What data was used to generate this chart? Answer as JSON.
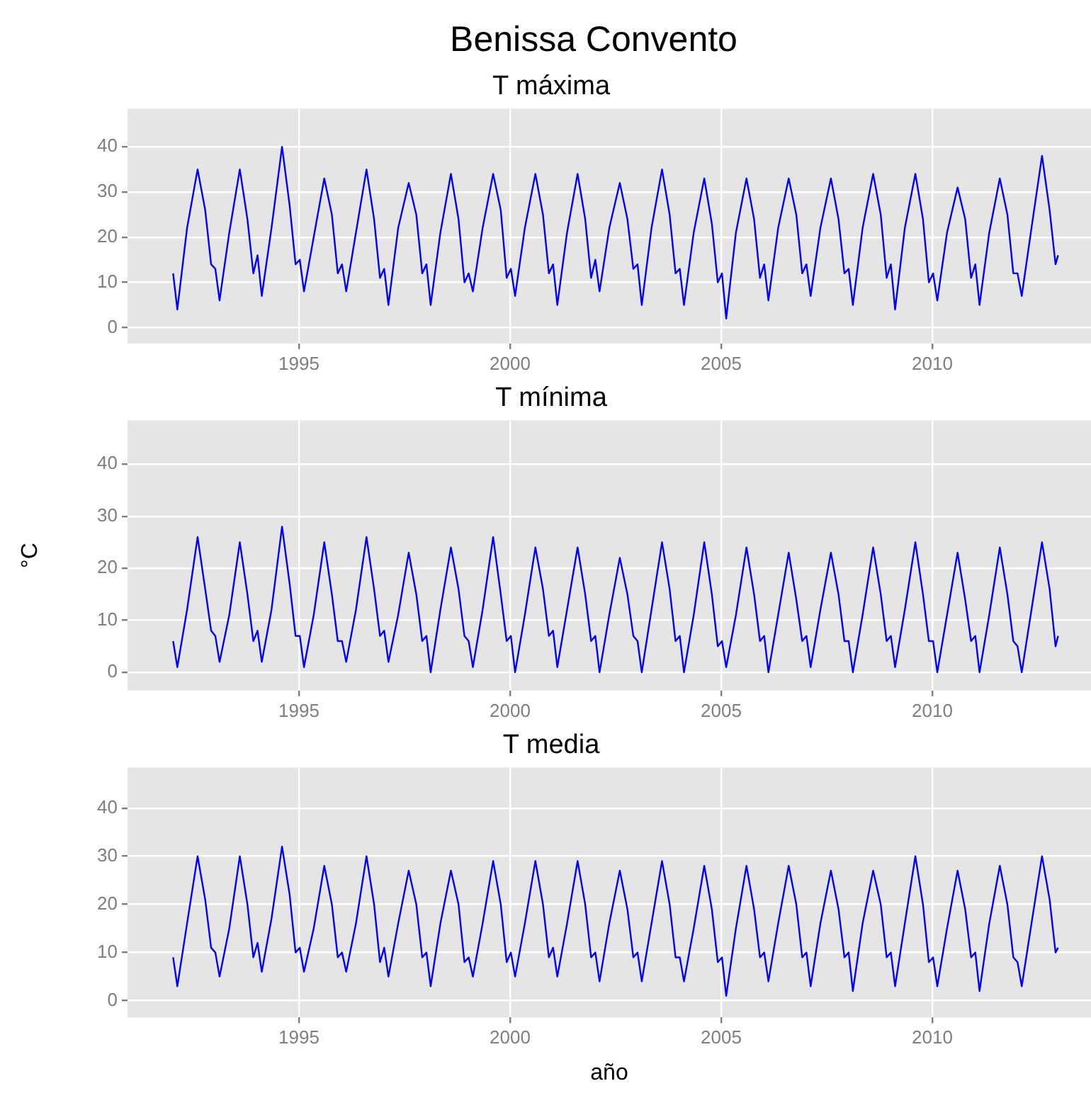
{
  "chart_data": [
    {
      "type": "line",
      "title": "Benissa Convento",
      "subtitle": "T máxima",
      "xlim": [
        1990.94,
        2013.76
      ],
      "ylim": [
        -3.5,
        48.4
      ],
      "xticks": [
        1995,
        2000,
        2005,
        2010
      ],
      "yticks": [
        0,
        10,
        20,
        30,
        40
      ],
      "grid": true,
      "legend": false,
      "marker": "none",
      "x": [
        1992.02,
        1992.12,
        1992.35,
        1992.6,
        1992.78,
        1992.92,
        1993.02,
        1993.12,
        1993.35,
        1993.6,
        1993.78,
        1993.92,
        1994.02,
        1994.12,
        1994.35,
        1994.6,
        1994.78,
        1994.92,
        1995.02,
        1995.12,
        1995.35,
        1995.6,
        1995.78,
        1995.92,
        1996.02,
        1996.12,
        1996.35,
        1996.6,
        1996.78,
        1996.92,
        1997.02,
        1997.12,
        1997.35,
        1997.6,
        1997.78,
        1997.92,
        1998.02,
        1998.12,
        1998.35,
        1998.6,
        1998.78,
        1998.92,
        1999.02,
        1999.12,
        1999.35,
        1999.6,
        1999.78,
        1999.92,
        2000.02,
        2000.12,
        2000.35,
        2000.6,
        2000.78,
        2000.92,
        2001.02,
        2001.12,
        2001.35,
        2001.6,
        2001.78,
        2001.92,
        2002.02,
        2002.12,
        2002.35,
        2002.6,
        2002.78,
        2002.92,
        2003.02,
        2003.12,
        2003.35,
        2003.6,
        2003.78,
        2003.92,
        2004.02,
        2004.12,
        2004.35,
        2004.6,
        2004.78,
        2004.92,
        2005.02,
        2005.12,
        2005.35,
        2005.6,
        2005.78,
        2005.92,
        2006.02,
        2006.12,
        2006.35,
        2006.6,
        2006.78,
        2006.92,
        2007.02,
        2007.12,
        2007.35,
        2007.6,
        2007.78,
        2007.92,
        2008.02,
        2008.12,
        2008.35,
        2008.6,
        2008.78,
        2008.92,
        2009.02,
        2009.12,
        2009.35,
        2009.6,
        2009.78,
        2009.92,
        2010.02,
        2010.12,
        2010.35,
        2010.6,
        2010.78,
        2010.92,
        2011.02,
        2011.12,
        2011.35,
        2011.6,
        2011.78,
        2011.92,
        2012.02,
        2012.12,
        2012.35,
        2012.6,
        2012.78,
        2012.92,
        2012.98
      ],
      "series": [
        {
          "color": "#0000ff",
          "values": [
            12,
            4,
            22,
            35,
            26,
            14,
            13,
            6,
            21,
            35,
            24,
            12,
            16,
            7,
            22,
            40,
            27,
            14,
            15,
            8,
            20,
            33,
            25,
            12,
            14,
            8,
            21,
            35,
            24,
            11,
            13,
            5,
            22,
            32,
            25,
            12,
            14,
            5,
            21,
            34,
            24,
            10,
            12,
            8,
            22,
            34,
            26,
            11,
            13,
            7,
            22,
            34,
            25,
            12,
            14,
            5,
            21,
            34,
            24,
            11,
            15,
            8,
            22,
            32,
            24,
            13,
            14,
            5,
            22,
            35,
            25,
            12,
            13,
            5,
            21,
            33,
            23,
            10,
            12,
            2,
            21,
            33,
            24,
            11,
            14,
            6,
            22,
            33,
            25,
            12,
            14,
            7,
            22,
            33,
            24,
            12,
            13,
            5,
            22,
            34,
            25,
            11,
            14,
            4,
            22,
            34,
            24,
            10,
            12,
            6,
            21,
            31,
            24,
            11,
            14,
            5,
            21,
            33,
            25,
            12,
            12,
            7,
            22,
            38,
            26,
            14,
            16
          ]
        }
      ]
    },
    {
      "type": "line",
      "title": "T mínima",
      "ylabel": "°C",
      "xlim": [
        1990.94,
        2013.76
      ],
      "ylim": [
        -3.5,
        48.4
      ],
      "xticks": [
        1995,
        2000,
        2005,
        2010
      ],
      "yticks": [
        0,
        10,
        20,
        30,
        40
      ],
      "grid": true,
      "legend": false,
      "marker": "none",
      "x": [
        1992.02,
        1992.12,
        1992.35,
        1992.6,
        1992.78,
        1992.92,
        1993.02,
        1993.12,
        1993.35,
        1993.6,
        1993.78,
        1993.92,
        1994.02,
        1994.12,
        1994.35,
        1994.6,
        1994.78,
        1994.92,
        1995.02,
        1995.12,
        1995.35,
        1995.6,
        1995.78,
        1995.92,
        1996.02,
        1996.12,
        1996.35,
        1996.6,
        1996.78,
        1996.92,
        1997.02,
        1997.12,
        1997.35,
        1997.6,
        1997.78,
        1997.92,
        1998.02,
        1998.12,
        1998.35,
        1998.6,
        1998.78,
        1998.92,
        1999.02,
        1999.12,
        1999.35,
        1999.6,
        1999.78,
        1999.92,
        2000.02,
        2000.12,
        2000.35,
        2000.6,
        2000.78,
        2000.92,
        2001.02,
        2001.12,
        2001.35,
        2001.6,
        2001.78,
        2001.92,
        2002.02,
        2002.12,
        2002.35,
        2002.6,
        2002.78,
        2002.92,
        2003.02,
        2003.12,
        2003.35,
        2003.6,
        2003.78,
        2003.92,
        2004.02,
        2004.12,
        2004.35,
        2004.6,
        2004.78,
        2004.92,
        2005.02,
        2005.12,
        2005.35,
        2005.6,
        2005.78,
        2005.92,
        2006.02,
        2006.12,
        2006.35,
        2006.6,
        2006.78,
        2006.92,
        2007.02,
        2007.12,
        2007.35,
        2007.6,
        2007.78,
        2007.92,
        2008.02,
        2008.12,
        2008.35,
        2008.6,
        2008.78,
        2008.92,
        2009.02,
        2009.12,
        2009.35,
        2009.6,
        2009.78,
        2009.92,
        2010.02,
        2010.12,
        2010.35,
        2010.6,
        2010.78,
        2010.92,
        2011.02,
        2011.12,
        2011.35,
        2011.6,
        2011.78,
        2011.92,
        2012.02,
        2012.12,
        2012.35,
        2012.6,
        2012.78,
        2012.92,
        2012.98
      ],
      "series": [
        {
          "color": "#0000ff",
          "values": [
            6,
            1,
            12,
            26,
            16,
            8,
            7,
            2,
            11,
            25,
            15,
            6,
            8,
            2,
            12,
            28,
            17,
            7,
            7,
            1,
            11,
            25,
            15,
            6,
            6,
            2,
            12,
            26,
            16,
            7,
            8,
            2,
            11,
            23,
            15,
            6,
            7,
            0,
            12,
            24,
            16,
            7,
            6,
            1,
            12,
            26,
            15,
            6,
            7,
            0,
            11,
            24,
            16,
            7,
            8,
            1,
            12,
            24,
            15,
            6,
            7,
            0,
            11,
            22,
            15,
            7,
            6,
            0,
            12,
            25,
            16,
            6,
            7,
            0,
            11,
            25,
            15,
            5,
            6,
            1,
            11,
            24,
            15,
            6,
            7,
            0,
            11,
            23,
            14,
            6,
            7,
            1,
            12,
            23,
            15,
            6,
            6,
            0,
            11,
            24,
            15,
            6,
            7,
            1,
            12,
            25,
            15,
            6,
            6,
            0,
            11,
            23,
            14,
            6,
            7,
            0,
            11,
            24,
            15,
            6,
            5,
            0,
            12,
            25,
            16,
            5,
            7
          ]
        }
      ]
    },
    {
      "type": "line",
      "title": "T media",
      "xlabel": "año",
      "xlim": [
        1990.94,
        2013.76
      ],
      "ylim": [
        -3.5,
        48.4
      ],
      "xticks": [
        1995,
        2000,
        2005,
        2010
      ],
      "yticks": [
        0,
        10,
        20,
        30,
        40
      ],
      "grid": true,
      "legend": false,
      "marker": "none",
      "x": [
        1992.02,
        1992.12,
        1992.35,
        1992.6,
        1992.78,
        1992.92,
        1993.02,
        1993.12,
        1993.35,
        1993.6,
        1993.78,
        1993.92,
        1994.02,
        1994.12,
        1994.35,
        1994.6,
        1994.78,
        1994.92,
        1995.02,
        1995.12,
        1995.35,
        1995.6,
        1995.78,
        1995.92,
        1996.02,
        1996.12,
        1996.35,
        1996.6,
        1996.78,
        1996.92,
        1997.02,
        1997.12,
        1997.35,
        1997.6,
        1997.78,
        1997.92,
        1998.02,
        1998.12,
        1998.35,
        1998.6,
        1998.78,
        1998.92,
        1999.02,
        1999.12,
        1999.35,
        1999.6,
        1999.78,
        1999.92,
        2000.02,
        2000.12,
        2000.35,
        2000.6,
        2000.78,
        2000.92,
        2001.02,
        2001.12,
        2001.35,
        2001.6,
        2001.78,
        2001.92,
        2002.02,
        2002.12,
        2002.35,
        2002.6,
        2002.78,
        2002.92,
        2003.02,
        2003.12,
        2003.35,
        2003.6,
        2003.78,
        2003.92,
        2004.02,
        2004.12,
        2004.35,
        2004.6,
        2004.78,
        2004.92,
        2005.02,
        2005.12,
        2005.35,
        2005.6,
        2005.78,
        2005.92,
        2006.02,
        2006.12,
        2006.35,
        2006.6,
        2006.78,
        2006.92,
        2007.02,
        2007.12,
        2007.35,
        2007.6,
        2007.78,
        2007.92,
        2008.02,
        2008.12,
        2008.35,
        2008.6,
        2008.78,
        2008.92,
        2009.02,
        2009.12,
        2009.35,
        2009.6,
        2009.78,
        2009.92,
        2010.02,
        2010.12,
        2010.35,
        2010.6,
        2010.78,
        2010.92,
        2011.02,
        2011.12,
        2011.35,
        2011.6,
        2011.78,
        2011.92,
        2012.02,
        2012.12,
        2012.35,
        2012.6,
        2012.78,
        2012.92,
        2012.98
      ],
      "series": [
        {
          "color": "#0000ff",
          "values": [
            9,
            3,
            16,
            30,
            21,
            11,
            10,
            5,
            15,
            30,
            20,
            9,
            12,
            6,
            17,
            32,
            22,
            10,
            11,
            6,
            15,
            28,
            20,
            9,
            10,
            6,
            16,
            30,
            20,
            8,
            11,
            5,
            16,
            27,
            20,
            9,
            10,
            3,
            16,
            27,
            20,
            8,
            9,
            5,
            16,
            29,
            20,
            8,
            10,
            5,
            16,
            29,
            20,
            9,
            11,
            5,
            16,
            29,
            20,
            9,
            10,
            4,
            16,
            27,
            19,
            9,
            10,
            4,
            16,
            29,
            20,
            9,
            9,
            4,
            15,
            28,
            19,
            8,
            9,
            1,
            15,
            28,
            19,
            9,
            10,
            4,
            16,
            28,
            20,
            9,
            10,
            3,
            16,
            27,
            19,
            9,
            10,
            2,
            16,
            27,
            20,
            9,
            10,
            3,
            16,
            30,
            20,
            8,
            9,
            3,
            15,
            27,
            19,
            9,
            10,
            2,
            16,
            28,
            20,
            9,
            8,
            3,
            16,
            30,
            21,
            10,
            11
          ]
        }
      ]
    }
  ]
}
